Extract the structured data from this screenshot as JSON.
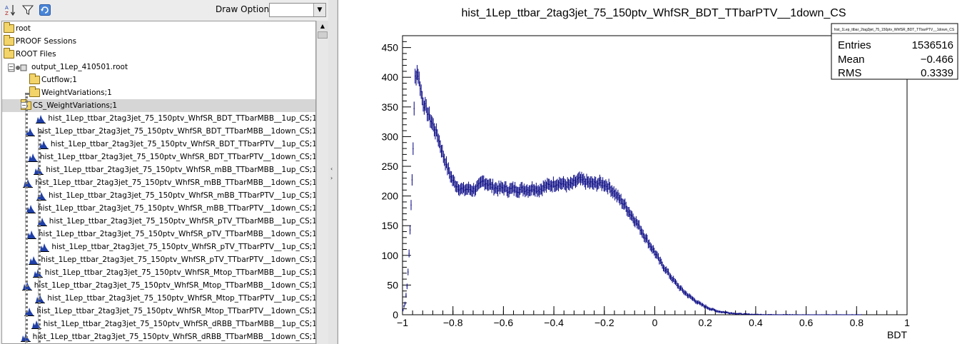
{
  "toolbar": {
    "draw_option_label": "Draw Option:",
    "draw_option_value": ""
  },
  "tree": {
    "items": [
      {
        "label": "root"
      },
      {
        "label": "PROOF Sessions"
      },
      {
        "label": "ROOT Files"
      },
      {
        "label": "output_1Lep_410501.root"
      },
      {
        "label": "Cutflow;1"
      },
      {
        "label": "WeightVariations;1"
      },
      {
        "label": "CS_WeightVariations;1"
      },
      {
        "label": "hist_1Lep_ttbar_2tag3jet_75_150ptv_WhfSR_BDT_TTbarMBB__1up_CS;1"
      },
      {
        "label": "hist_1Lep_ttbar_2tag3jet_75_150ptv_WhfSR_BDT_TTbarMBB__1down_CS;1"
      },
      {
        "label": "hist_1Lep_ttbar_2tag3jet_75_150ptv_WhfSR_BDT_TTbarPTV__1up_CS;1"
      },
      {
        "label": "hist_1Lep_ttbar_2tag3jet_75_150ptv_WhfSR_BDT_TTbarPTV__1down_CS;1"
      },
      {
        "label": "hist_1Lep_ttbar_2tag3jet_75_150ptv_WhfSR_mBB_TTbarMBB__1up_CS;1"
      },
      {
        "label": "hist_1Lep_ttbar_2tag3jet_75_150ptv_WhfSR_mBB_TTbarMBB__1down_CS;1"
      },
      {
        "label": "hist_1Lep_ttbar_2tag3jet_75_150ptv_WhfSR_mBB_TTbarPTV__1up_CS;1"
      },
      {
        "label": "hist_1Lep_ttbar_2tag3jet_75_150ptv_WhfSR_mBB_TTbarPTV__1down_CS;1"
      },
      {
        "label": "hist_1Lep_ttbar_2tag3jet_75_150ptv_WhfSR_pTV_TTbarMBB__1up_CS;1"
      },
      {
        "label": "hist_1Lep_ttbar_2tag3jet_75_150ptv_WhfSR_pTV_TTbarMBB__1down_CS;1"
      },
      {
        "label": "hist_1Lep_ttbar_2tag3jet_75_150ptv_WhfSR_pTV_TTbarPTV__1up_CS;1"
      },
      {
        "label": "hist_1Lep_ttbar_2tag3jet_75_150ptv_WhfSR_pTV_TTbarPTV__1down_CS;1"
      },
      {
        "label": "hist_1Lep_ttbar_2tag3jet_75_150ptv_WhfSR_Mtop_TTbarMBB__1up_CS;1"
      },
      {
        "label": "hist_1Lep_ttbar_2tag3jet_75_150ptv_WhfSR_Mtop_TTbarMBB__1down_CS;1"
      },
      {
        "label": "hist_1Lep_ttbar_2tag3jet_75_150ptv_WhfSR_Mtop_TTbarPTV__1up_CS;1"
      },
      {
        "label": "hist_1Lep_ttbar_2tag3jet_75_150ptv_WhfSR_Mtop_TTbarPTV__1down_CS;1"
      },
      {
        "label": "hist_1Lep_ttbar_2tag3jet_75_150ptv_WhfSR_dRBB_TTbarMBB__1up_CS;1"
      },
      {
        "label": "hist_1Lep_ttbar_2tag3jet_75_150ptv_WhfSR_dRBB_TTbarMBB__1down_CS;1"
      }
    ]
  },
  "canvas": {
    "title": "hist_1Lep_ttbar_2tag3jet_75_150ptv_WhfSR_BDT_TTbarPTV__1down_CS",
    "stats": {
      "header": "hist_1Lep_ttbar_2tag3jet_75_150ptv_WhfSR_BDT_TTbarPTV__1down_CS",
      "rows": [
        {
          "name": "Entries",
          "value": "1536516"
        },
        {
          "name": "Mean",
          "value": "−0.466"
        },
        {
          "name": "RMS",
          "value": "0.3339"
        }
      ]
    },
    "line_color": "#000080"
  },
  "chart_data": {
    "type": "line",
    "title": "hist_1Lep_ttbar_2tag3jet_75_150ptv_WhfSR_BDT_TTbarPTV__1down_CS",
    "xlabel": "BDT",
    "ylabel": "",
    "xlim": [
      -1,
      1
    ],
    "ylim": [
      0,
      470
    ],
    "x_ticks": [
      -1,
      -0.8,
      -0.6,
      -0.4,
      -0.2,
      0,
      0.2,
      0.4,
      0.6,
      0.8,
      1
    ],
    "x_tick_labels": [
      "−1",
      "−0.8",
      "−0.6",
      "−0.4",
      "−0.2",
      "0",
      "0.2",
      "0.4",
      "0.6",
      "0.8",
      "1"
    ],
    "y_ticks": [
      0,
      50,
      100,
      150,
      200,
      250,
      300,
      350,
      400,
      450
    ],
    "y_tick_labels": [
      "0",
      "50",
      "100",
      "150",
      "200",
      "250",
      "300",
      "350",
      "400",
      "450"
    ],
    "series": [
      {
        "x": [
          -1.0,
          -0.99,
          -0.98,
          -0.97,
          -0.96,
          -0.955,
          -0.95,
          -0.94,
          -0.93,
          -0.92,
          -0.9,
          -0.88,
          -0.86,
          -0.84,
          -0.82,
          -0.8,
          -0.78,
          -0.76,
          -0.74,
          -0.72,
          -0.7,
          -0.68,
          -0.66,
          -0.64,
          -0.62,
          -0.6,
          -0.58,
          -0.56,
          -0.54,
          -0.52,
          -0.5,
          -0.48,
          -0.46,
          -0.44,
          -0.42,
          -0.4,
          -0.38,
          -0.36,
          -0.34,
          -0.32,
          -0.3,
          -0.28,
          -0.26,
          -0.24,
          -0.22,
          -0.2,
          -0.18,
          -0.16,
          -0.14,
          -0.12,
          -0.1,
          -0.08,
          -0.06,
          -0.04,
          -0.02,
          0.0,
          0.02,
          0.04,
          0.06,
          0.08,
          0.1,
          0.12,
          0.14,
          0.16,
          0.18,
          0.2,
          0.22,
          0.24,
          0.26,
          0.28,
          0.3,
          0.32,
          0.34,
          0.36,
          0.38,
          0.4,
          0.42,
          0.44,
          0.46,
          0.48,
          0.5,
          0.52,
          0.54,
          0.56,
          0.58,
          0.6,
          0.62,
          0.64,
          0.66,
          0.7,
          0.75,
          0.8
        ],
        "y": [
          5,
          20,
          55,
          140,
          250,
          330,
          400,
          410,
          385,
          360,
          340,
          320,
          300,
          270,
          245,
          225,
          215,
          210,
          212,
          210,
          215,
          225,
          220,
          215,
          212,
          214,
          210,
          212,
          210,
          212,
          210,
          214,
          210,
          215,
          218,
          220,
          222,
          220,
          218,
          222,
          228,
          225,
          222,
          220,
          222,
          220,
          215,
          205,
          195,
          185,
          172,
          160,
          147,
          132,
          118,
          105,
          90,
          78,
          66,
          55,
          45,
          37,
          30,
          24,
          18,
          14,
          10,
          7,
          5,
          4,
          3,
          2,
          1.5,
          1,
          0.8,
          0.5,
          0.4,
          0.3,
          0.2,
          0.2,
          0.1,
          0.1,
          0.1,
          0,
          0,
          0,
          0,
          0,
          0,
          0,
          0,
          0
        ]
      }
    ],
    "grid": false,
    "stats_box": "top-right"
  }
}
